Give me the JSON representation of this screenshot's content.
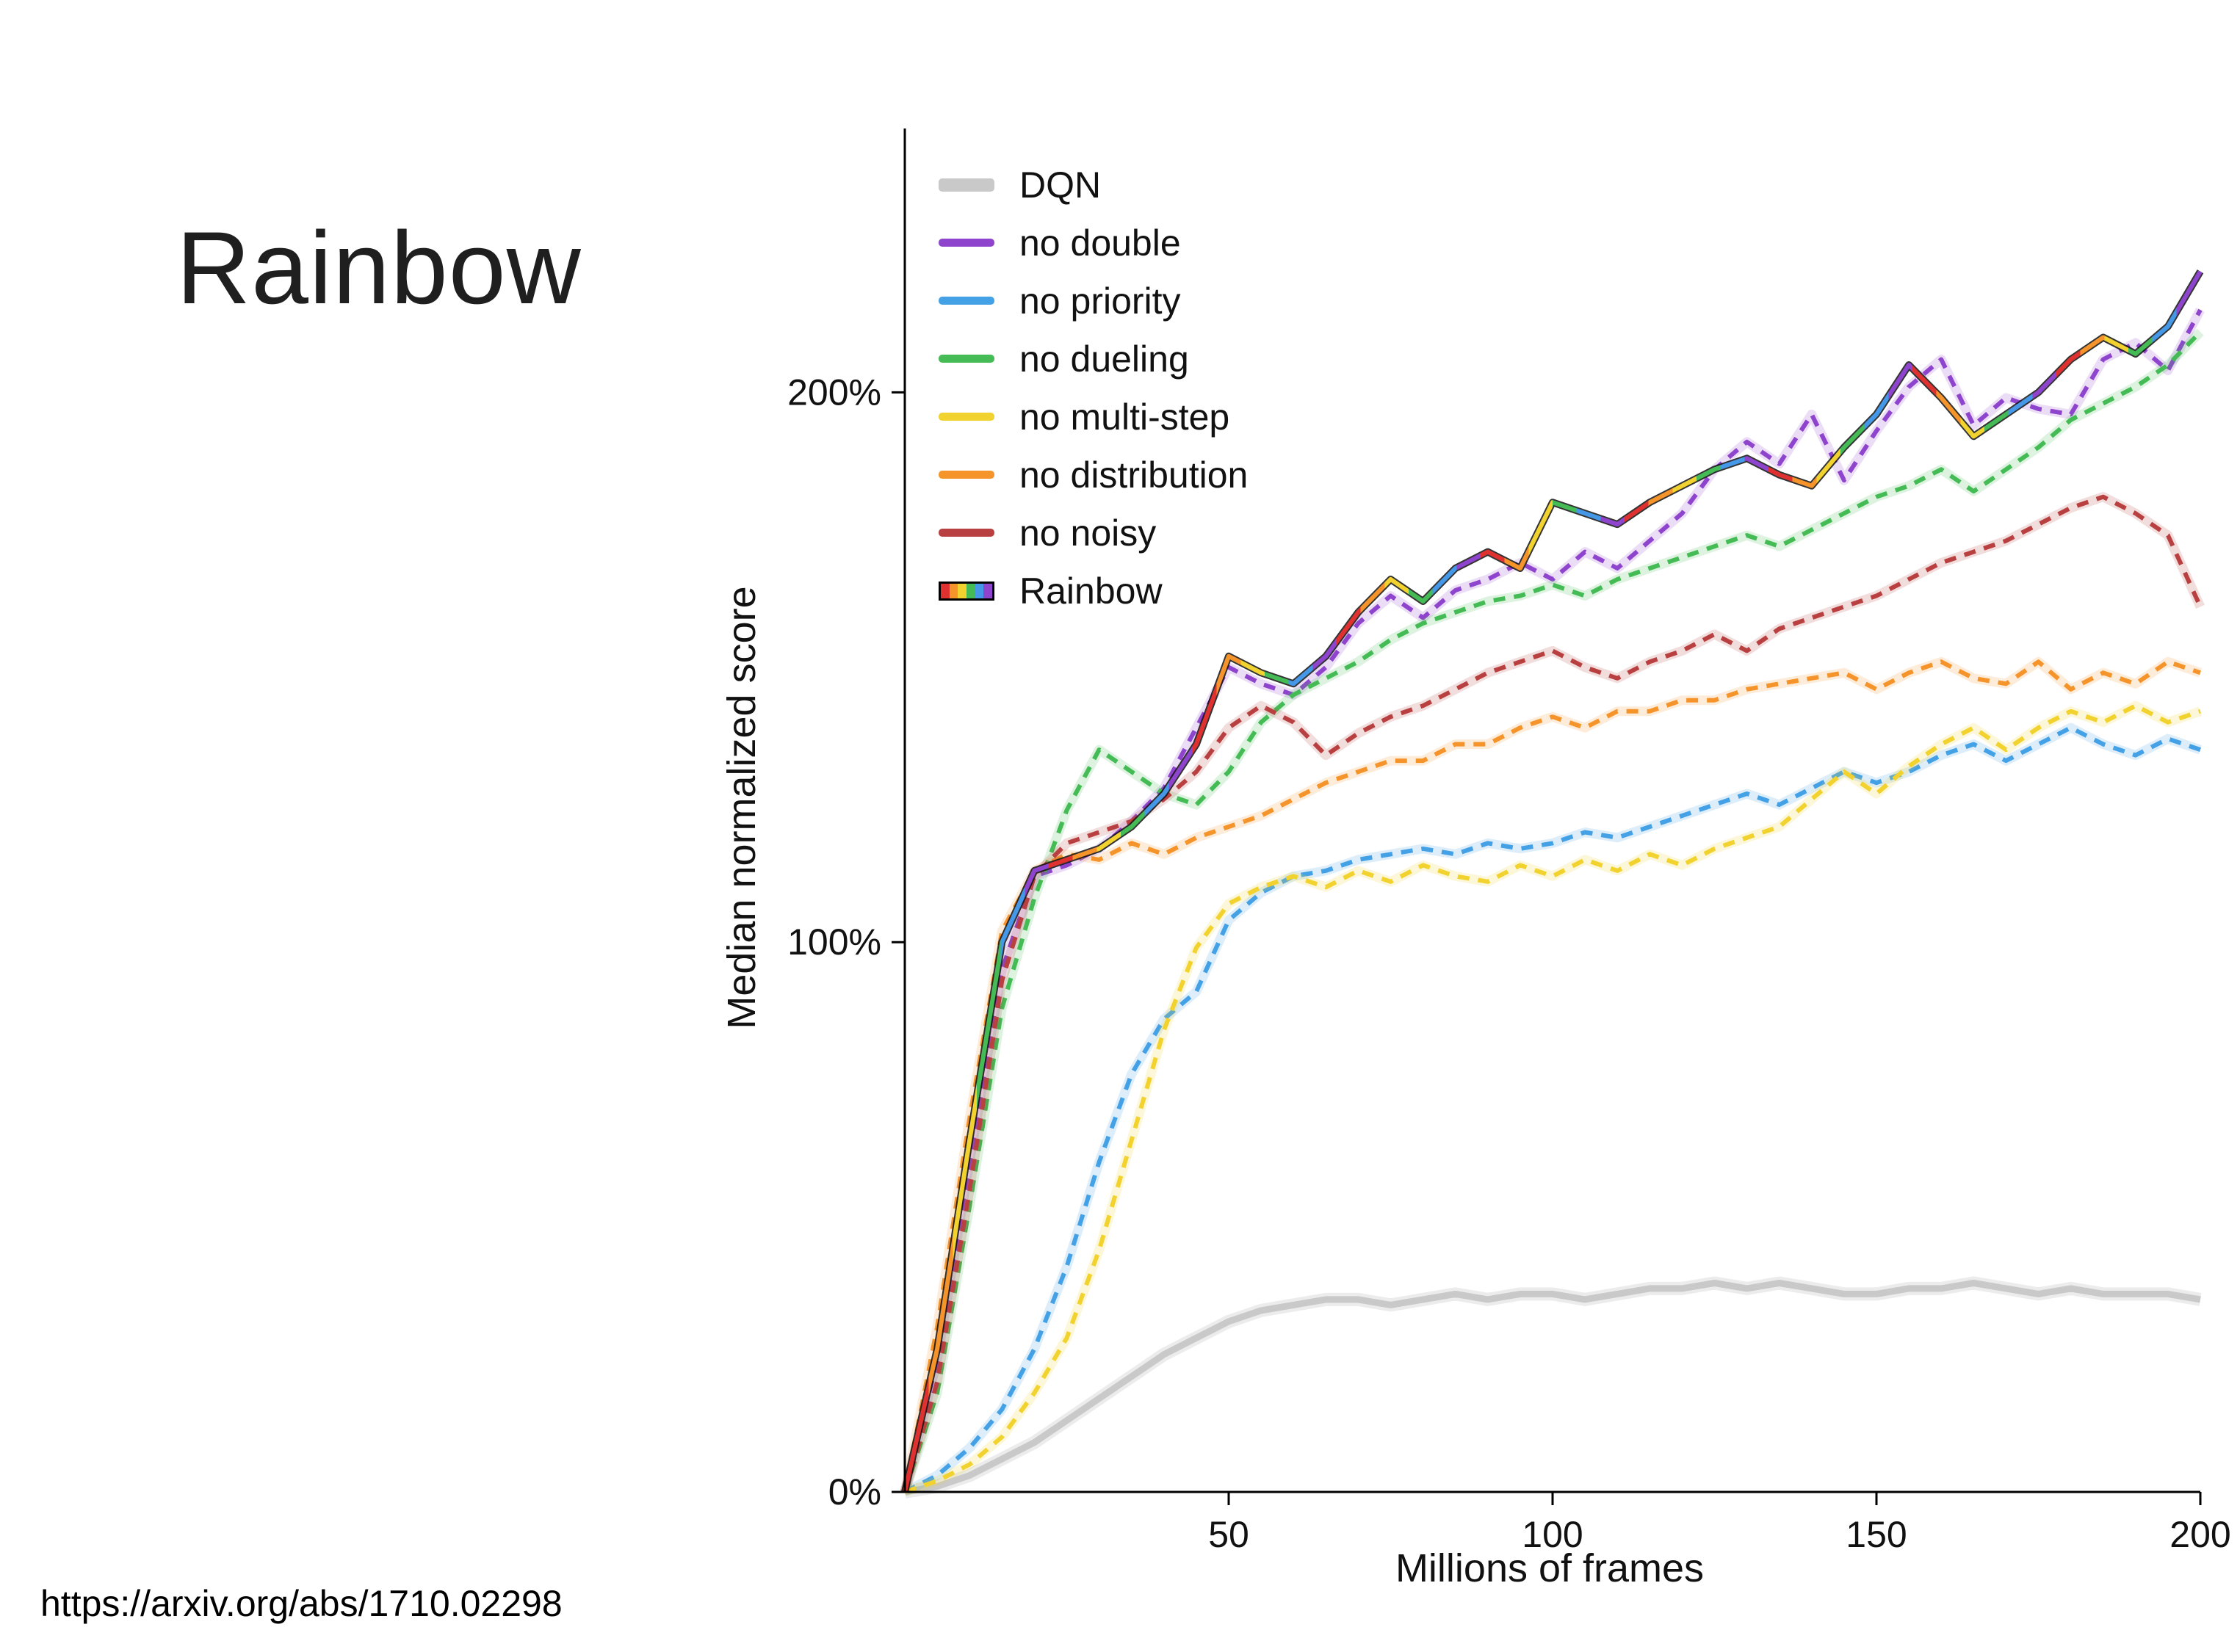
{
  "slide": {
    "title": "Rainbow",
    "source_url": "https://arxiv.org/abs/1710.02298"
  },
  "chart_data": {
    "type": "line",
    "title": "",
    "xlabel": "Millions of frames",
    "ylabel": "Median normalized score",
    "xlim": [
      0,
      200
    ],
    "ylim": [
      0,
      248
    ],
    "xticks": [
      50,
      100,
      150,
      200
    ],
    "yticks": [
      0,
      100,
      200
    ],
    "ytick_labels": [
      "0%",
      "100%",
      "200%"
    ],
    "grid": false,
    "legend_position": "upper left",
    "rainbow_palette": [
      "#e03131",
      "#f5942a",
      "#f2d22e",
      "#44bb55",
      "#4598e8",
      "#8e44cc"
    ],
    "x": [
      0,
      5,
      10,
      15,
      20,
      25,
      30,
      35,
      40,
      45,
      50,
      55,
      60,
      65,
      70,
      75,
      80,
      85,
      90,
      95,
      100,
      105,
      110,
      115,
      120,
      125,
      130,
      135,
      140,
      145,
      150,
      155,
      160,
      165,
      170,
      175,
      180,
      185,
      190,
      195,
      200
    ],
    "series": [
      {
        "name": "DQN",
        "color": "#c9c9c9",
        "style": "solid",
        "values": [
          0,
          1,
          3,
          6,
          9,
          13,
          17,
          21,
          25,
          28,
          31,
          33,
          34,
          35,
          35,
          34,
          35,
          36,
          35,
          36,
          36,
          35,
          36,
          37,
          37,
          38,
          37,
          38,
          37,
          36,
          36,
          37,
          37,
          38,
          37,
          36,
          37,
          36,
          36,
          36,
          35
        ]
      },
      {
        "name": "no double",
        "color": "#8e44cc",
        "style": "dashed",
        "values": [
          0,
          24,
          60,
          95,
          112,
          114,
          117,
          122,
          128,
          139,
          150,
          147,
          145,
          150,
          158,
          163,
          159,
          164,
          166,
          169,
          166,
          171,
          168,
          173,
          178,
          186,
          191,
          187,
          196,
          184,
          193,
          201,
          206,
          194,
          199,
          197,
          196,
          206,
          209,
          204,
          215
        ]
      },
      {
        "name": "no priority",
        "color": "#45a1e6",
        "style": "dashed",
        "values": [
          0,
          3,
          8,
          15,
          26,
          41,
          60,
          76,
          86,
          91,
          104,
          109,
          112,
          113,
          115,
          116,
          117,
          116,
          118,
          117,
          118,
          120,
          119,
          121,
          123,
          125,
          127,
          125,
          128,
          131,
          129,
          131,
          134,
          136,
          133,
          136,
          139,
          136,
          134,
          137,
          135
        ]
      },
      {
        "name": "no dueling",
        "color": "#44bb55",
        "style": "dashed",
        "values": [
          0,
          18,
          52,
          88,
          108,
          124,
          135,
          131,
          127,
          125,
          131,
          140,
          145,
          148,
          151,
          155,
          158,
          160,
          162,
          163,
          165,
          163,
          166,
          168,
          170,
          172,
          174,
          172,
          175,
          178,
          181,
          183,
          186,
          182,
          186,
          190,
          195,
          198,
          201,
          205,
          211
        ]
      },
      {
        "name": "no multi-step",
        "color": "#f2d22e",
        "style": "dashed",
        "values": [
          0,
          2,
          5,
          10,
          18,
          28,
          44,
          64,
          84,
          99,
          107,
          110,
          112,
          110,
          113,
          111,
          114,
          112,
          111,
          114,
          112,
          115,
          113,
          116,
          114,
          117,
          119,
          121,
          126,
          131,
          127,
          132,
          136,
          139,
          135,
          139,
          142,
          140,
          143,
          140,
          142
        ]
      },
      {
        "name": "no distribution",
        "color": "#f5942a",
        "style": "dashed",
        "values": [
          0,
          30,
          68,
          102,
          113,
          116,
          115,
          118,
          116,
          119,
          121,
          123,
          126,
          129,
          131,
          133,
          133,
          136,
          136,
          139,
          141,
          139,
          142,
          142,
          144,
          144,
          146,
          147,
          148,
          149,
          146,
          149,
          151,
          148,
          147,
          151,
          146,
          149,
          147,
          151,
          149
        ]
      },
      {
        "name": "no noisy",
        "color": "#b94040",
        "style": "dashed",
        "values": [
          0,
          20,
          55,
          93,
          112,
          118,
          120,
          122,
          126,
          131,
          139,
          143,
          140,
          134,
          138,
          141,
          143,
          146,
          149,
          151,
          153,
          150,
          148,
          151,
          153,
          156,
          153,
          157,
          159,
          161,
          163,
          166,
          169,
          171,
          173,
          176,
          179,
          181,
          178,
          174,
          161
        ]
      },
      {
        "name": "Rainbow",
        "color": "rainbow",
        "style": "solid",
        "values": [
          0,
          26,
          64,
          100,
          113,
          115,
          117,
          121,
          127,
          136,
          152,
          149,
          147,
          152,
          160,
          166,
          162,
          168,
          171,
          168,
          180,
          178,
          176,
          180,
          183,
          186,
          188,
          185,
          183,
          190,
          196,
          205,
          199,
          192,
          196,
          200,
          206,
          210,
          207,
          212,
          222
        ]
      }
    ]
  }
}
